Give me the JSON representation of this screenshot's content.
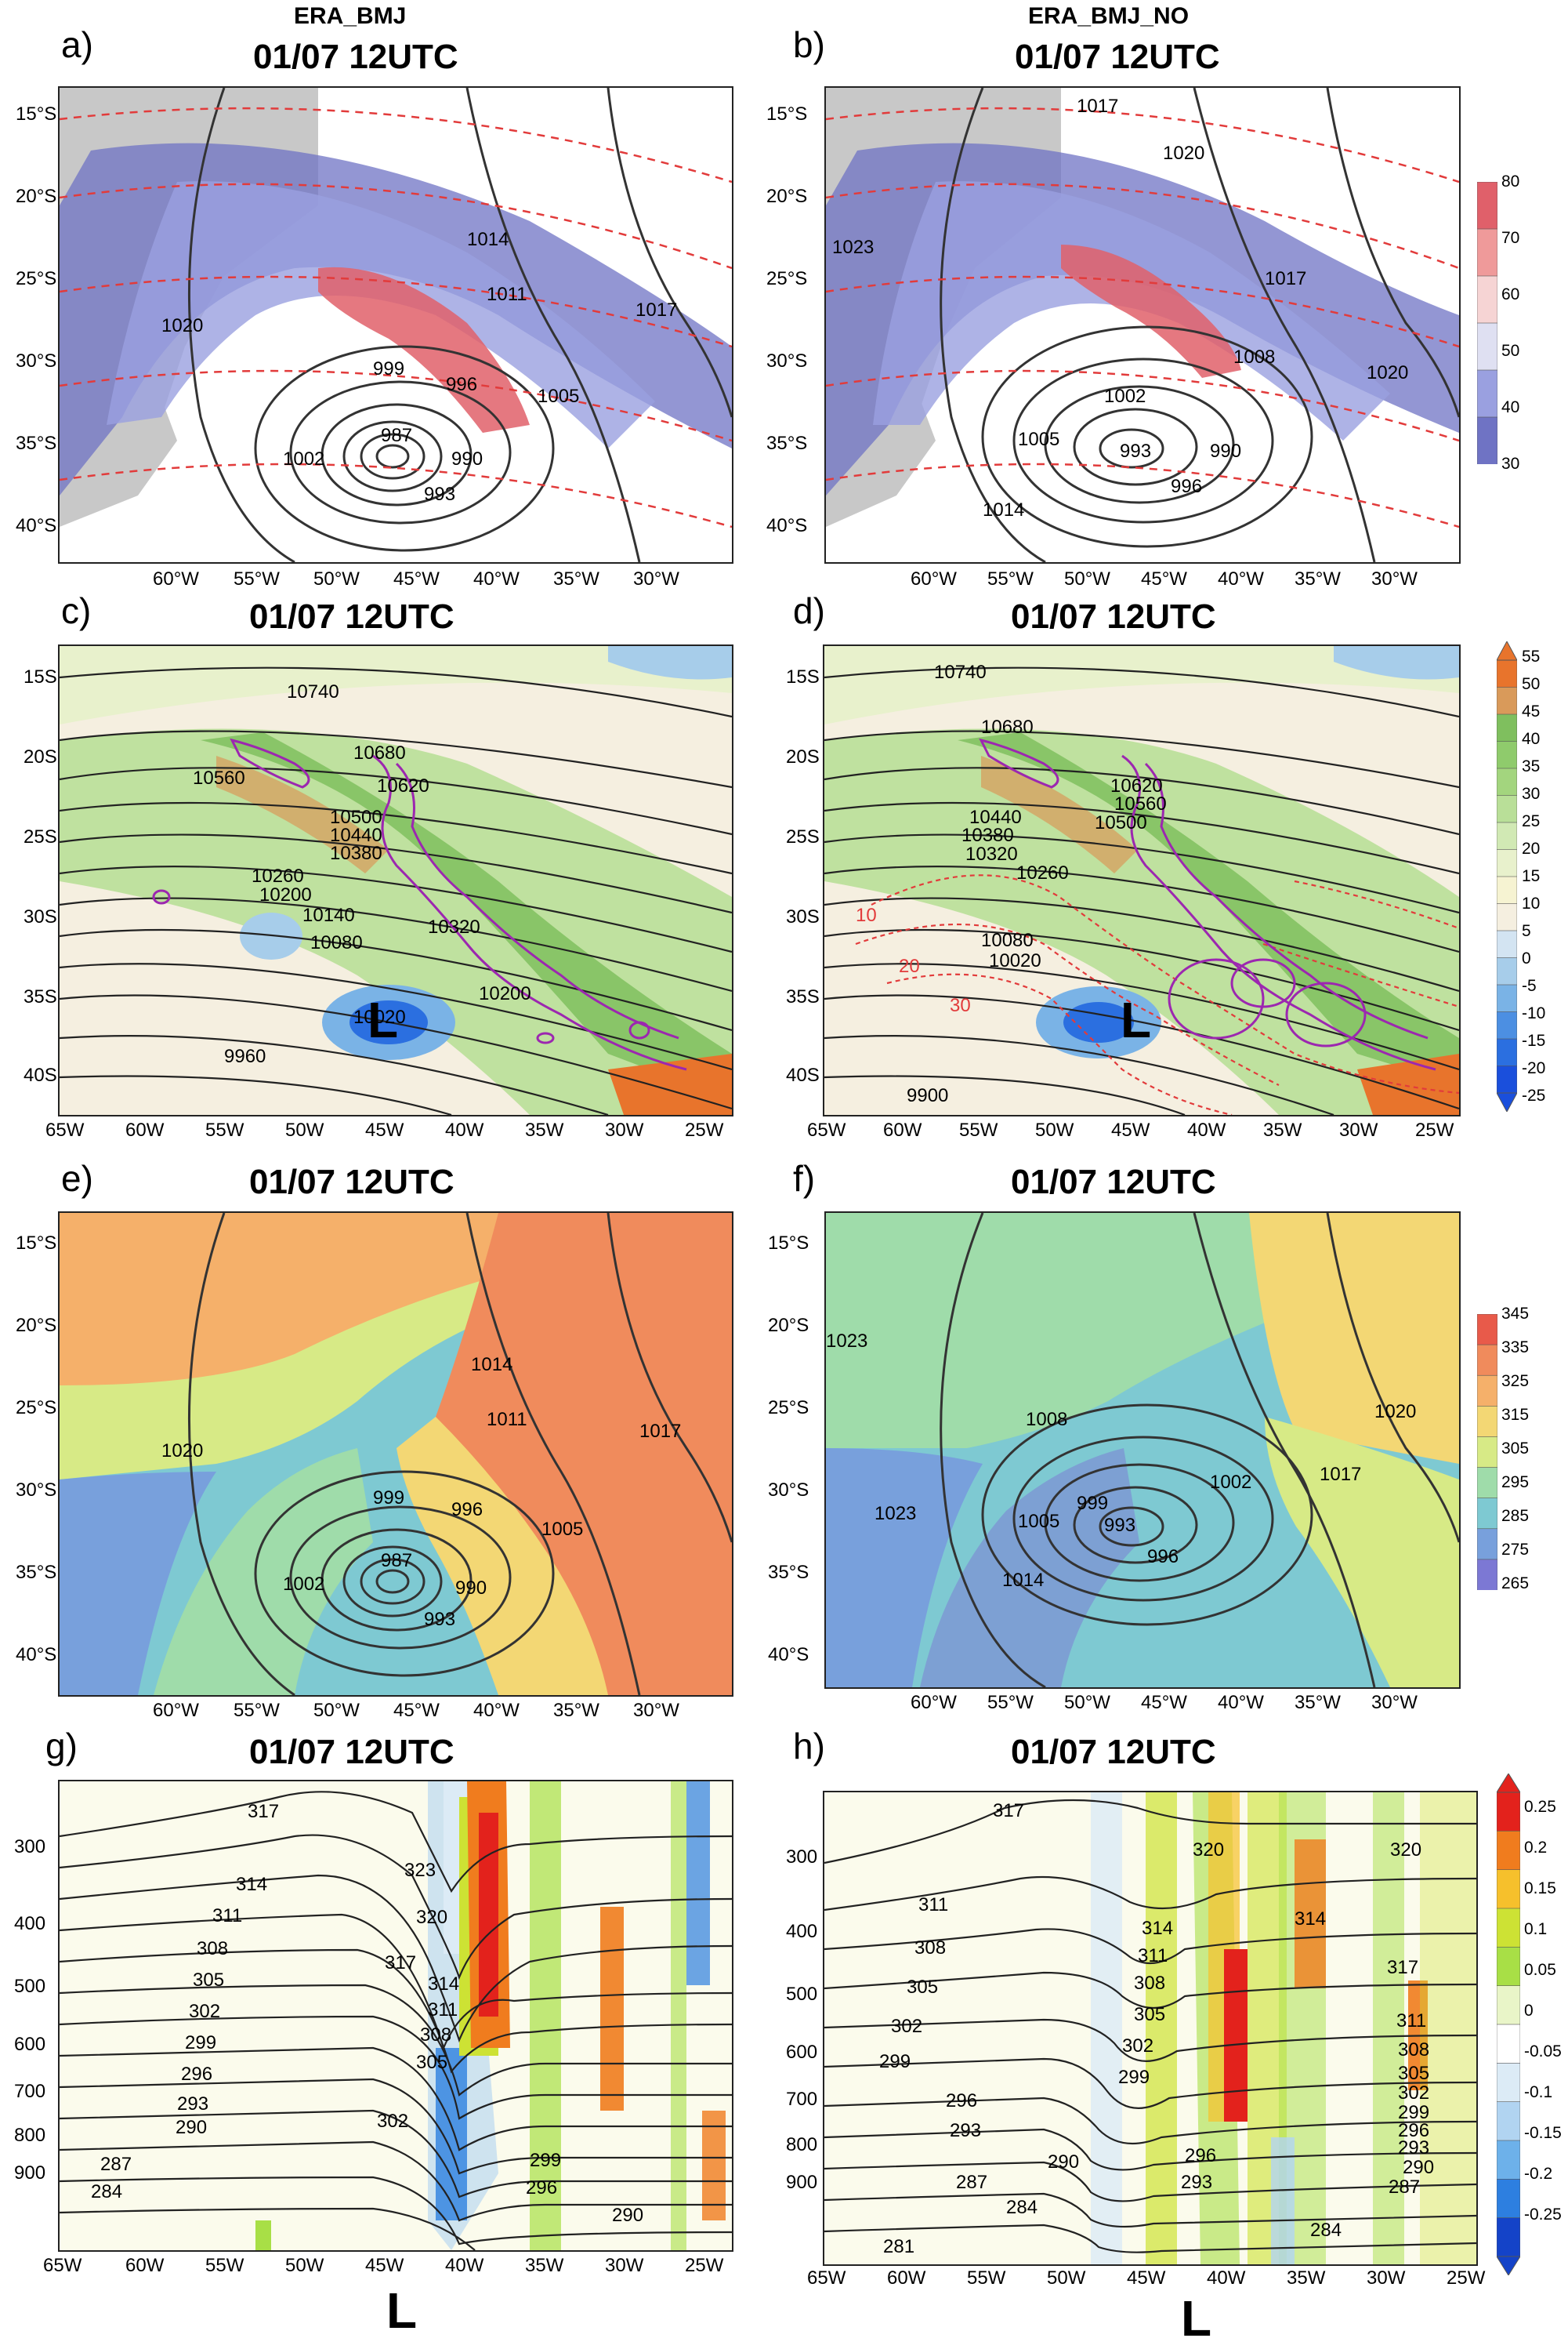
{
  "panels": [
    {
      "label": "a)",
      "header": "ERA_BMJ",
      "title": "01/07 12UTC"
    },
    {
      "label": "b)",
      "header": "ERA_BMJ_NO",
      "title": "01/07 12UTC"
    },
    {
      "label": "c)",
      "title": "01/07 12UTC"
    },
    {
      "label": "d)",
      "title": "01/07 12UTC"
    },
    {
      "label": "e)",
      "title": "01/07 12UTC"
    },
    {
      "label": "f)",
      "title": "01/07 12UTC"
    },
    {
      "label": "g)",
      "title": "01/07 12UTC"
    },
    {
      "label": "h)",
      "title": "01/07 12UTC"
    }
  ],
  "axes": {
    "lat_ab": [
      "15°S",
      "20°S",
      "25°S",
      "30°S",
      "35°S",
      "40°S"
    ],
    "lon_ab": [
      "60°W",
      "55°W",
      "50°W",
      "45°W",
      "40°W",
      "35°W",
      "30°W"
    ],
    "lat_cd": [
      "15S",
      "20S",
      "25S",
      "30S",
      "35S",
      "40S"
    ],
    "lon_cd": [
      "65W",
      "60W",
      "55W",
      "50W",
      "45W",
      "40W",
      "35W",
      "30W",
      "25W"
    ],
    "lev_gh": [
      "300",
      "400",
      "500",
      "600",
      "700",
      "800",
      "900"
    ]
  },
  "colorbars": {
    "ab": {
      "ticks": [
        "80",
        "70",
        "60",
        "50",
        "40",
        "30"
      ],
      "colors": [
        "#e0606a",
        "#ef9a9a",
        "#f6d4d4",
        "#dfe0f2",
        "#9aa0e0",
        "#6f73c4"
      ]
    },
    "cd": {
      "ticks": [
        "55",
        "50",
        "45",
        "40",
        "35",
        "30",
        "25",
        "20",
        "15",
        "10",
        "5",
        "0",
        "-5",
        "-10",
        "-15",
        "-20",
        "-25"
      ],
      "colors": [
        "#e8742c",
        "#d99a5a",
        "#7fbf5e",
        "#8fcb6c",
        "#a3d57e",
        "#b9df98",
        "#d1e9b4",
        "#e8f1cc",
        "#f6f3d2",
        "#f5efe0",
        "#d3e4f2",
        "#a7cdea",
        "#7ab3e6",
        "#4c8fe2",
        "#2b6fe0",
        "#1a4fdc"
      ]
    },
    "ef": {
      "ticks": [
        "345",
        "335",
        "325",
        "315",
        "305",
        "295",
        "285",
        "275",
        "265"
      ],
      "colors": [
        "#e85a4a",
        "#f08b5c",
        "#f5b06a",
        "#f3d774",
        "#d7ea86",
        "#9fdcaa",
        "#7ec9d2",
        "#78a0dc",
        "#7c78d4"
      ]
    },
    "gh": {
      "ticks": [
        "0.25",
        "0.2",
        "0.15",
        "0.1",
        "0.05",
        "0",
        "-0.05",
        "-0.1",
        "-0.15",
        "-0.2",
        "-0.25"
      ],
      "colors": [
        "#e3221c",
        "#f07c1e",
        "#f6c02c",
        "#cde234",
        "#a8df46",
        "#e9f5c8",
        "#ffffff",
        "#dcebf6",
        "#b1d4f1",
        "#6db1ea",
        "#2d7fe0",
        "#1443c8"
      ]
    }
  },
  "contours": {
    "a": [
      "1020",
      "1014",
      "1011",
      "1017",
      "999",
      "996",
      "1005",
      "987",
      "990",
      "993",
      "1002"
    ],
    "b": [
      "1017",
      "1020",
      "1023",
      "1017",
      "1008",
      "1002",
      "1020",
      "993",
      "990",
      "996",
      "1005",
      "1014"
    ],
    "c": [
      "10740",
      "10680",
      "10620",
      "10560",
      "10500",
      "10440",
      "10380",
      "10260",
      "10200",
      "10140",
      "10080",
      "10320",
      "10200",
      "10020",
      "9960"
    ],
    "d": [
      "10740",
      "10680",
      "10620",
      "10560",
      "10500",
      "10440",
      "10380",
      "10320",
      "10260",
      "10080",
      "10020",
      "9900",
      "10",
      "20",
      "30"
    ],
    "e": [
      "1020",
      "1014",
      "1011",
      "1017",
      "999",
      "996",
      "1005",
      "987",
      "990",
      "993",
      "1002"
    ],
    "f": [
      "1023",
      "1020",
      "1017",
      "1008",
      "1002",
      "999",
      "993",
      "996",
      "1005",
      "1014",
      "1023"
    ],
    "g": [
      "317",
      "323",
      "314",
      "311",
      "308",
      "305",
      "302",
      "299",
      "296",
      "293",
      "290",
      "287",
      "284",
      "320",
      "317",
      "314",
      "311",
      "308",
      "305",
      "302",
      "299",
      "296",
      "290"
    ],
    "h": [
      "317",
      "320",
      "311",
      "308",
      "305",
      "302",
      "299",
      "296",
      "293",
      "290",
      "287",
      "284",
      "281",
      "314",
      "311",
      "308",
      "305",
      "302",
      "299",
      "296",
      "293",
      "317",
      "314",
      "320",
      "311",
      "308",
      "305",
      "302",
      "299",
      "296",
      "293",
      "290",
      "287",
      "284"
    ]
  },
  "markers": {
    "low": "L"
  }
}
